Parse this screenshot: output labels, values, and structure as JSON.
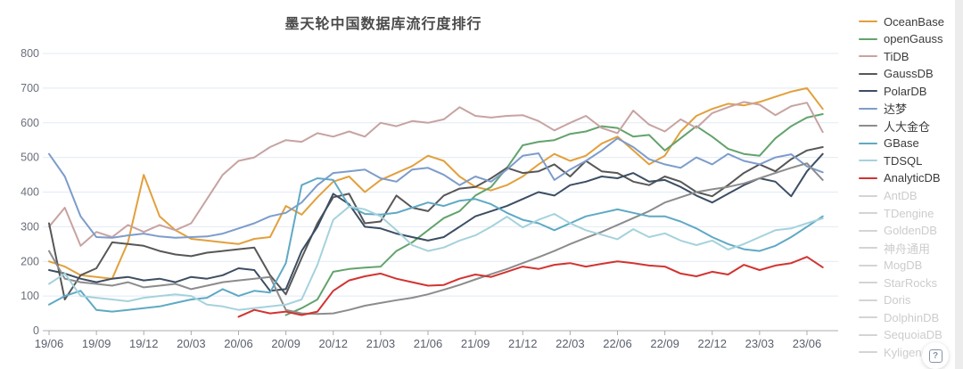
{
  "page": {
    "title": "墨天轮中国数据库流行度排行"
  },
  "help_button": {
    "icon": "?"
  },
  "axis": {
    "y_tick_labels": [
      "0",
      "100",
      "200",
      "300",
      "400",
      "500",
      "600",
      "700",
      "800"
    ],
    "x_tick_labels": [
      "19/06",
      "19/09",
      "19/12",
      "20/03",
      "20/06",
      "20/09",
      "20/12",
      "21/03",
      "21/06",
      "21/09",
      "21/12",
      "22/03",
      "22/06",
      "22/09",
      "22/12",
      "23/03",
      "23/06"
    ]
  },
  "colors": {
    "grid": "#e2eaf5",
    "axis_line": "#ababab",
    "tick_text": "#5a5f6b",
    "legend_active_text": "#3a3a3a",
    "legend_inactive": "#d4d4d4",
    "legend_inactive_text": "#cccccc"
  },
  "chart_data": {
    "type": "line",
    "title": "墨天轮中国数据库流行度排行",
    "xlabel": "",
    "ylabel": "",
    "ylim": [
      0,
      800
    ],
    "grid": true,
    "legend_position": "right",
    "x": [
      "19/06",
      "19/07",
      "19/08",
      "19/09",
      "19/10",
      "19/11",
      "19/12",
      "20/01",
      "20/02",
      "20/03",
      "20/04",
      "20/05",
      "20/06",
      "20/07",
      "20/08",
      "20/09",
      "20/10",
      "20/11",
      "20/12",
      "21/01",
      "21/02",
      "21/03",
      "21/04",
      "21/05",
      "21/06",
      "21/07",
      "21/08",
      "21/09",
      "21/10",
      "21/11",
      "21/12",
      "22/01",
      "22/02",
      "22/03",
      "22/04",
      "22/05",
      "22/06",
      "22/07",
      "22/08",
      "22/09",
      "22/10",
      "22/11",
      "22/12",
      "23/01",
      "23/02",
      "23/03",
      "23/04",
      "23/05",
      "23/06",
      "23/07"
    ],
    "series": [
      {
        "name": "OceanBase",
        "color": "#E2A03C",
        "values": [
          200,
          185,
          160,
          155,
          150,
          255,
          450,
          330,
          290,
          265,
          260,
          255,
          250,
          265,
          270,
          360,
          335,
          385,
          430,
          445,
          400,
          435,
          455,
          475,
          505,
          490,
          445,
          415,
          405,
          420,
          445,
          480,
          510,
          490,
          505,
          540,
          560,
          520,
          480,
          505,
          575,
          620,
          640,
          655,
          650,
          660,
          675,
          690,
          700,
          640
        ]
      },
      {
        "name": "openGauss",
        "color": "#63A36C",
        "values": [
          null,
          null,
          null,
          null,
          null,
          null,
          null,
          null,
          null,
          null,
          null,
          null,
          null,
          null,
          null,
          45,
          65,
          90,
          170,
          178,
          182,
          185,
          230,
          255,
          290,
          325,
          345,
          390,
          415,
          470,
          535,
          545,
          550,
          568,
          575,
          590,
          585,
          560,
          565,
          520,
          555,
          590,
          560,
          525,
          510,
          505,
          555,
          590,
          615,
          625
        ]
      },
      {
        "name": "TiDB",
        "color": "#C7A3A1",
        "values": [
          300,
          355,
          245,
          285,
          270,
          305,
          285,
          305,
          290,
          310,
          380,
          450,
          490,
          500,
          530,
          550,
          545,
          570,
          560,
          575,
          560,
          600,
          590,
          605,
          600,
          610,
          645,
          620,
          615,
          620,
          622,
          605,
          578,
          600,
          620,
          585,
          570,
          635,
          595,
          575,
          610,
          585,
          628,
          645,
          660,
          652,
          622,
          648,
          658,
          573
        ]
      },
      {
        "name": "GaussDB",
        "color": "#575757",
        "values": [
          310,
          90,
          160,
          180,
          255,
          250,
          245,
          230,
          220,
          215,
          225,
          230,
          235,
          240,
          160,
          105,
          210,
          310,
          385,
          395,
          310,
          315,
          390,
          355,
          345,
          390,
          410,
          415,
          440,
          470,
          455,
          460,
          480,
          445,
          490,
          460,
          455,
          430,
          420,
          445,
          430,
          400,
          388,
          420,
          455,
          480,
          460,
          495,
          520,
          530
        ]
      },
      {
        "name": "PolarDB",
        "color": "#3C4E63",
        "values": [
          175,
          165,
          150,
          140,
          150,
          155,
          145,
          150,
          140,
          155,
          150,
          160,
          180,
          175,
          115,
          120,
          230,
          300,
          395,
          365,
          300,
          295,
          280,
          270,
          260,
          270,
          300,
          330,
          345,
          360,
          380,
          400,
          390,
          420,
          430,
          445,
          440,
          455,
          430,
          435,
          415,
          390,
          370,
          395,
          420,
          440,
          430,
          388,
          460,
          510
        ]
      },
      {
        "name": "达梦",
        "color": "#7D9CCB",
        "values": [
          510,
          445,
          330,
          270,
          268,
          275,
          280,
          272,
          268,
          270,
          272,
          280,
          295,
          310,
          330,
          340,
          370,
          420,
          455,
          460,
          465,
          440,
          430,
          465,
          470,
          450,
          420,
          445,
          430,
          465,
          505,
          512,
          435,
          465,
          490,
          520,
          555,
          530,
          495,
          480,
          470,
          500,
          480,
          510,
          490,
          480,
          500,
          509,
          474,
          457
        ]
      },
      {
        "name": "人大金仓",
        "color": "#8C8C8C",
        "values": [
          230,
          150,
          140,
          135,
          130,
          140,
          125,
          130,
          135,
          120,
          130,
          140,
          145,
          150,
          155,
          60,
          50,
          48,
          50,
          60,
          72,
          80,
          88,
          95,
          105,
          118,
          132,
          148,
          163,
          178,
          195,
          212,
          230,
          250,
          268,
          285,
          305,
          325,
          345,
          370,
          385,
          400,
          408,
          415,
          425,
          440,
          455,
          470,
          483,
          435
        ]
      },
      {
        "name": "GBase",
        "color": "#5FA9C4",
        "values": [
          75,
          100,
          115,
          60,
          55,
          60,
          65,
          70,
          80,
          90,
          95,
          120,
          100,
          115,
          110,
          195,
          420,
          440,
          435,
          360,
          337,
          335,
          340,
          355,
          370,
          360,
          375,
          380,
          365,
          340,
          320,
          310,
          290,
          310,
          330,
          340,
          350,
          340,
          330,
          330,
          315,
          295,
          270,
          250,
          235,
          230,
          245,
          270,
          300,
          330
        ]
      },
      {
        "name": "TDSQL",
        "color": "#A5D2DC",
        "values": [
          135,
          165,
          100,
          95,
          90,
          85,
          95,
          100,
          105,
          100,
          75,
          70,
          60,
          65,
          70,
          75,
          90,
          190,
          320,
          358,
          350,
          330,
          290,
          247,
          230,
          240,
          260,
          275,
          300,
          329,
          298,
          320,
          337,
          310,
          290,
          277,
          264,
          293,
          270,
          281,
          260,
          247,
          260,
          234,
          250,
          270,
          290,
          295,
          310,
          324
        ]
      },
      {
        "name": "AnalyticDB",
        "color": "#D23430",
        "values": [
          null,
          null,
          null,
          null,
          null,
          null,
          null,
          null,
          null,
          null,
          null,
          null,
          40,
          60,
          50,
          55,
          45,
          55,
          115,
          145,
          157,
          165,
          150,
          140,
          130,
          132,
          150,
          162,
          155,
          170,
          185,
          178,
          190,
          195,
          185,
          193,
          200,
          195,
          188,
          185,
          165,
          157,
          170,
          162,
          190,
          175,
          188,
          195,
          213,
          183
        ]
      }
    ],
    "inactive_series": [
      "AntDB",
      "TDengine",
      "GoldenDB",
      "神舟通用",
      "MogDB",
      "StarRocks",
      "Doris",
      "DolphinDB",
      "SequoiaDB",
      "Kyligence"
    ]
  }
}
